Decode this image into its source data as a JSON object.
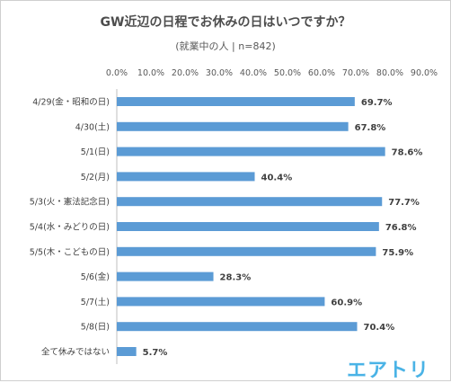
{
  "chart_data": {
    "type": "bar",
    "orientation": "horizontal",
    "title": "GW近辺の日程でお休みの日はいつですか？",
    "subtitle": "(就業中の人 | n=842)",
    "categories": [
      "4/29(金・昭和の日)",
      "4/30(土)",
      "5/1(日)",
      "5/2(月)",
      "5/3(火・憲法記念日)",
      "5/4(水・みどりの日)",
      "5/5(木・こどもの日)",
      "5/6(金)",
      "5/7(土)",
      "5/8(日)",
      "全て休みではない"
    ],
    "values": [
      69.7,
      67.8,
      78.6,
      40.4,
      77.7,
      76.8,
      75.9,
      28.3,
      60.9,
      70.4,
      5.7
    ],
    "value_labels": [
      "69.7%",
      "67.8%",
      "78.6%",
      "40.4%",
      "77.7%",
      "76.8%",
      "75.9%",
      "28.3%",
      "60.9%",
      "70.4%",
      "5.7%"
    ],
    "xticks": [
      "0.0%",
      "10.0%",
      "20.0%",
      "30.0%",
      "40.0%",
      "50.0%",
      "60.0%",
      "70.0%",
      "80.0%",
      "90.0%"
    ],
    "xlim": [
      0,
      90
    ],
    "grid": false,
    "bar_color": "#5b9bd5"
  },
  "brand": {
    "logo_text": "エアトリ",
    "logo_color": "#4ab3e6"
  }
}
